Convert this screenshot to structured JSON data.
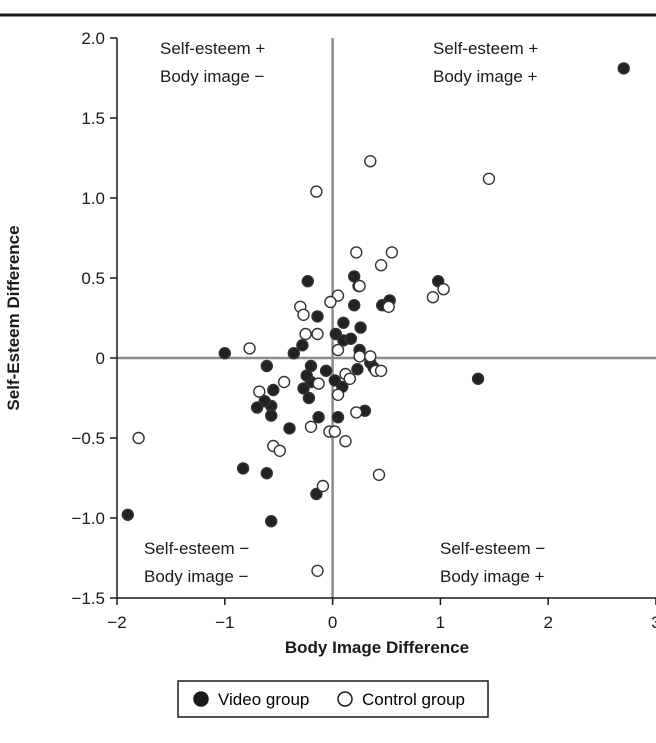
{
  "chart_data": {
    "type": "scatter",
    "xlabel": "Body Image Difference",
    "ylabel": "Self-Esteem Difference",
    "xlim": [
      -2,
      3
    ],
    "ylim": [
      -1.5,
      2.0
    ],
    "x_ticks": [
      {
        "v": -2,
        "label": "−2"
      },
      {
        "v": -1,
        "label": "−1"
      },
      {
        "v": 0,
        "label": "0"
      },
      {
        "v": 1,
        "label": "1"
      },
      {
        "v": 2,
        "label": "2"
      },
      {
        "v": 3,
        "label": "3"
      }
    ],
    "y_ticks": [
      {
        "v": 2.0,
        "label": "2.0"
      },
      {
        "v": 1.5,
        "label": "1.5"
      },
      {
        "v": 1.0,
        "label": "1.0"
      },
      {
        "v": 0.5,
        "label": "0.5"
      },
      {
        "v": 0,
        "label": "0"
      },
      {
        "v": -0.5,
        "label": "−0.5"
      },
      {
        "v": -1.0,
        "label": "−1.0"
      },
      {
        "v": -1.5,
        "label": "−1.5"
      }
    ],
    "quadrant_labels": {
      "top_left": [
        "Self-esteem +",
        "Body image −"
      ],
      "top_right": [
        "Self-esteem +",
        "Body image +"
      ],
      "bottom_left": [
        "Self-esteem −",
        "Body image −"
      ],
      "bottom_right": [
        "Self-esteem −",
        "Body image +"
      ]
    },
    "legend_position": "bottom-center",
    "series": [
      {
        "name": "Video group",
        "marker": "filled",
        "points": [
          [
            2.7,
            1.81
          ],
          [
            0.98,
            0.48
          ],
          [
            0.53,
            0.36
          ],
          [
            0.46,
            0.33
          ],
          [
            1.35,
            -0.13
          ],
          [
            0.2,
            0.51
          ],
          [
            0.24,
            0.45
          ],
          [
            0.2,
            0.33
          ],
          [
            0.1,
            0.22
          ],
          [
            0.03,
            0.15
          ],
          [
            0.1,
            0.11
          ],
          [
            0.17,
            0.12
          ],
          [
            0.26,
            0.19
          ],
          [
            0.25,
            0.05
          ],
          [
            0.35,
            -0.03
          ],
          [
            0.38,
            -0.06
          ],
          [
            0.23,
            -0.07
          ],
          [
            0.09,
            -0.18
          ],
          [
            0.02,
            -0.14
          ],
          [
            -0.06,
            -0.08
          ],
          [
            -0.2,
            -0.05
          ],
          [
            -0.2,
            -0.15
          ],
          [
            -0.24,
            -0.11
          ],
          [
            -0.27,
            -0.19
          ],
          [
            -0.22,
            -0.25
          ],
          [
            -0.28,
            0.08
          ],
          [
            -0.36,
            0.03
          ],
          [
            -0.14,
            0.26
          ],
          [
            -0.23,
            0.48
          ],
          [
            -0.13,
            -0.37
          ],
          [
            0.05,
            -0.37
          ],
          [
            0.3,
            -0.33
          ],
          [
            -0.4,
            -0.44
          ],
          [
            -0.55,
            -0.2
          ],
          [
            -0.57,
            -0.3
          ],
          [
            -0.57,
            -0.36
          ],
          [
            -0.61,
            -0.05
          ],
          [
            -0.63,
            -0.27
          ],
          [
            -0.7,
            -0.31
          ],
          [
            -0.83,
            -0.69
          ],
          [
            -0.61,
            -0.72
          ],
          [
            -0.57,
            -1.02
          ],
          [
            -0.15,
            -0.85
          ],
          [
            -1.0,
            0.03
          ],
          [
            -1.9,
            -0.98
          ]
        ]
      },
      {
        "name": "Control group",
        "marker": "open",
        "points": [
          [
            0.35,
            1.23
          ],
          [
            -0.15,
            1.04
          ],
          [
            1.45,
            1.12
          ],
          [
            0.22,
            0.66
          ],
          [
            0.55,
            0.66
          ],
          [
            0.45,
            0.58
          ],
          [
            0.25,
            0.45
          ],
          [
            0.05,
            0.39
          ],
          [
            -0.02,
            0.35
          ],
          [
            -0.3,
            0.32
          ],
          [
            -0.27,
            0.27
          ],
          [
            0.52,
            0.32
          ],
          [
            0.93,
            0.38
          ],
          [
            1.03,
            0.43
          ],
          [
            -0.25,
            0.15
          ],
          [
            -0.14,
            0.15
          ],
          [
            0.05,
            0.05
          ],
          [
            0.25,
            0.01
          ],
          [
            0.35,
            0.01
          ],
          [
            0.4,
            -0.08
          ],
          [
            0.45,
            -0.08
          ],
          [
            0.12,
            -0.1
          ],
          [
            0.16,
            -0.13
          ],
          [
            -0.77,
            0.06
          ],
          [
            -0.45,
            -0.15
          ],
          [
            -0.13,
            -0.16
          ],
          [
            0.05,
            -0.23
          ],
          [
            -0.2,
            -0.43
          ],
          [
            -0.03,
            -0.46
          ],
          [
            0.02,
            -0.46
          ],
          [
            0.12,
            -0.52
          ],
          [
            0.22,
            -0.34
          ],
          [
            -0.55,
            -0.55
          ],
          [
            -0.49,
            -0.58
          ],
          [
            -0.68,
            -0.21
          ],
          [
            0.43,
            -0.73
          ],
          [
            -0.09,
            -0.8
          ],
          [
            -0.14,
            -1.33
          ],
          [
            -1.8,
            -0.5
          ]
        ]
      }
    ]
  },
  "colors": {
    "axis": "#1a1a1a",
    "zero_line": "#8c8c8c",
    "marker_fill": "#222222",
    "marker_stroke": "#333333"
  }
}
